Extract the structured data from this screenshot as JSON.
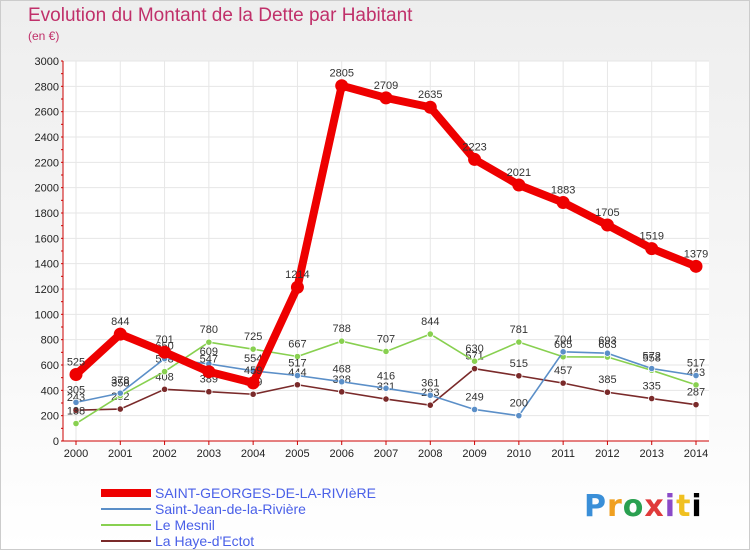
{
  "header": {
    "title": "Evolution du Montant de la Dette par Habitant",
    "subtitle": "(en €)"
  },
  "logo": {
    "text": "Proxiti"
  },
  "chart_data": {
    "type": "line",
    "title": "Evolution du Montant de la Dette par Habitant",
    "subtitle": "(en €)",
    "xlabel": "",
    "ylabel": "",
    "ylim": [
      0,
      3000
    ],
    "yticks": [
      0,
      200,
      400,
      600,
      800,
      1000,
      1200,
      1400,
      1600,
      1800,
      2000,
      2200,
      2400,
      2600,
      2800,
      3000
    ],
    "categories": [
      "2000",
      "2001",
      "2002",
      "2003",
      "2004",
      "2005",
      "2006",
      "2007",
      "2008",
      "2009",
      "2010",
      "2011",
      "2012",
      "2013",
      "2014"
    ],
    "grid": true,
    "legend": "bottom-left",
    "series": [
      {
        "name": "SAINT-GEORGES-DE-LA-RIVIèRE",
        "color": "#ee0000",
        "values": [
          525,
          844,
          701,
          547,
          459,
          1214,
          2805,
          2709,
          2635,
          2223,
          2021,
          1883,
          1705,
          1519,
          1379
        ],
        "labels": [
          "525",
          "844",
          "701",
          "547",
          "459",
          "1214",
          "2805",
          "2709",
          "2635",
          "2223",
          "2021",
          "1883",
          "1705",
          "1519",
          "1379"
        ]
      },
      {
        "name": "Saint-Jean-de-la-Rivière",
        "color": "#5b8fc8",
        "values": [
          305,
          378,
          650,
          609,
          554,
          517,
          468,
          416,
          361,
          249,
          200,
          704,
          693,
          572,
          517
        ],
        "labels": [
          "305",
          "378",
          "650",
          "609",
          "554",
          "517",
          "468",
          "416",
          "361",
          "249",
          "200",
          "704",
          "693",
          "572",
          "517"
        ]
      },
      {
        "name": "Le Mesnil",
        "color": "#88d050",
        "values": [
          138,
          358,
          548,
          780,
          725,
          667,
          788,
          707,
          844,
          630,
          781,
          665,
          663,
          558,
          443
        ],
        "labels": [
          "138",
          "358",
          "548",
          "780",
          "725",
          "667",
          "788",
          "707",
          "844",
          "630",
          "781",
          "665",
          "663",
          "558",
          "443"
        ]
      },
      {
        "name": "La Haye-d'Ectot",
        "color": "#7a2a2a",
        "values": [
          243,
          252,
          408,
          389,
          369,
          444,
          388,
          331,
          283,
          571,
          515,
          457,
          385,
          335,
          287
        ],
        "labels": [
          "243",
          "252",
          "408",
          "389",
          "369",
          "444",
          "388",
          "331",
          "283",
          "571",
          "515",
          "457",
          "385",
          "335",
          "287"
        ]
      }
    ]
  }
}
